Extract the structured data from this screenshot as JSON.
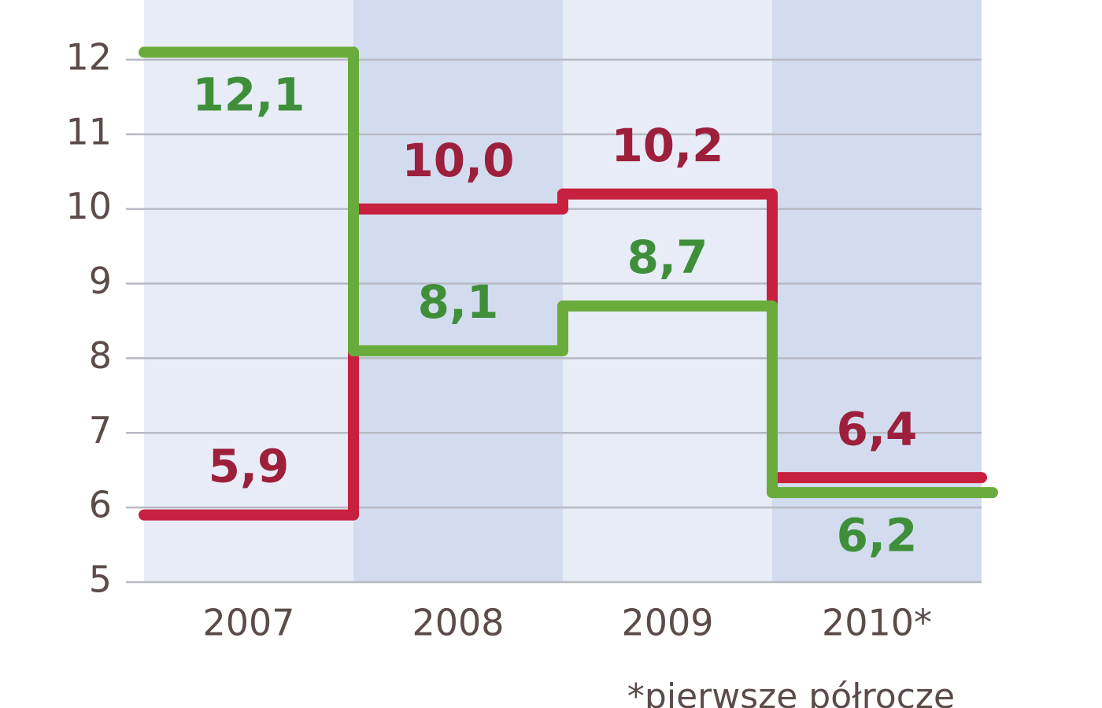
{
  "chart_data": {
    "type": "step",
    "categories": [
      "2007",
      "2008",
      "2009",
      "2010*"
    ],
    "series": [
      {
        "color": "#c8203f",
        "values": [
          5.9,
          10.0,
          10.2,
          6.4
        ],
        "value_labels": [
          "5,9",
          "10,0",
          "10,2",
          "6,4"
        ]
      },
      {
        "color": "#6aac3c",
        "values": [
          12.1,
          8.1,
          8.7,
          6.2
        ],
        "value_labels": [
          "12,1",
          "8,1",
          "8,7",
          "6,2"
        ]
      }
    ],
    "label_colors": [
      "#9c1f3c",
      "#3f8f3a"
    ],
    "ylim": [
      5,
      12.8
    ],
    "yticks": [
      5,
      6,
      7,
      8,
      9,
      10,
      11,
      12
    ],
    "grid": true,
    "band_colors": [
      "#e8ecf7",
      "#d3dcee"
    ],
    "footnote": "*pierwsze półrocze"
  }
}
